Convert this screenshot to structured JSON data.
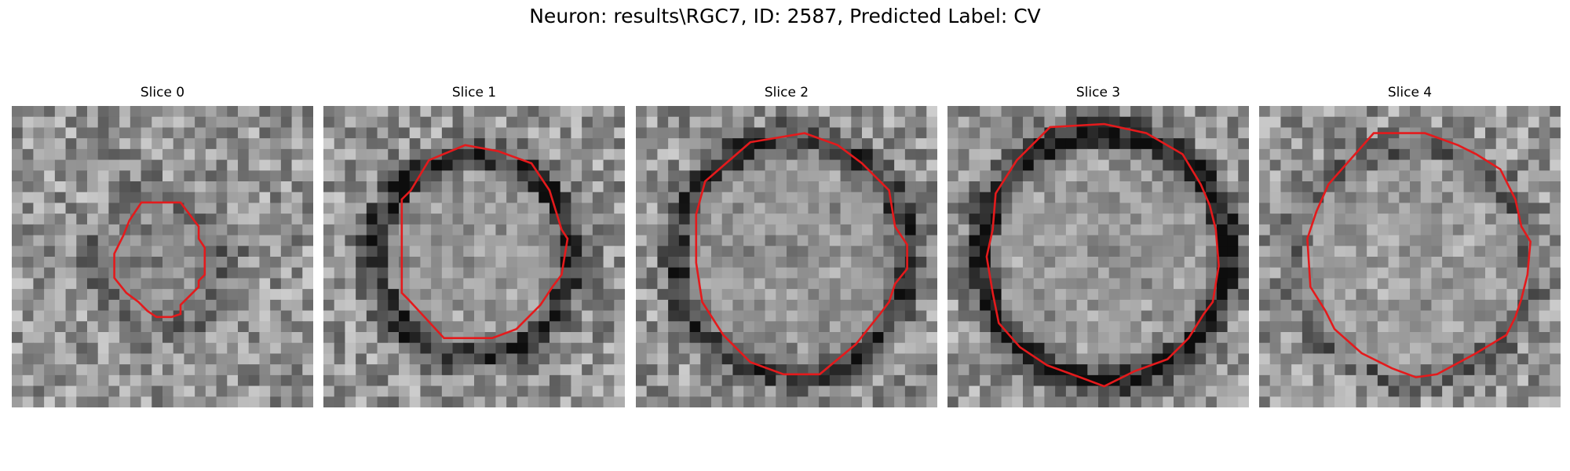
{
  "figure": {
    "title": "Neuron: results\\RGC7, ID: 2587, Predicted Label: CV"
  },
  "contour_color": "#e41a1c",
  "panels": [
    {
      "title": "Slice 0",
      "seed": 11,
      "ring_center": [
        0.5,
        0.52
      ],
      "ring_radius": 0.22,
      "ring_strength": 0.15,
      "interior_level": 0.46,
      "contour": [
        [
          0.43,
          0.32
        ],
        [
          0.56,
          0.32
        ],
        [
          0.62,
          0.4
        ],
        [
          0.62,
          0.44
        ],
        [
          0.64,
          0.47
        ],
        [
          0.64,
          0.56
        ],
        [
          0.62,
          0.58
        ],
        [
          0.62,
          0.6
        ],
        [
          0.56,
          0.66
        ],
        [
          0.56,
          0.69
        ],
        [
          0.53,
          0.7
        ],
        [
          0.48,
          0.7
        ],
        [
          0.45,
          0.68
        ],
        [
          0.42,
          0.65
        ],
        [
          0.38,
          0.62
        ],
        [
          0.34,
          0.57
        ],
        [
          0.34,
          0.49
        ],
        [
          0.37,
          0.43
        ],
        [
          0.39,
          0.38
        ]
      ]
    },
    {
      "title": "Slice 1",
      "seed": 23,
      "ring_center": [
        0.5,
        0.5
      ],
      "ring_radius": 0.33,
      "ring_strength": 0.42,
      "interior_level": 0.62,
      "contour": [
        [
          0.35,
          0.18
        ],
        [
          0.47,
          0.13
        ],
        [
          0.58,
          0.15
        ],
        [
          0.69,
          0.19
        ],
        [
          0.75,
          0.28
        ],
        [
          0.79,
          0.41
        ],
        [
          0.81,
          0.44
        ],
        [
          0.79,
          0.56
        ],
        [
          0.76,
          0.6
        ],
        [
          0.72,
          0.66
        ],
        [
          0.64,
          0.74
        ],
        [
          0.56,
          0.77
        ],
        [
          0.51,
          0.77
        ],
        [
          0.4,
          0.77
        ],
        [
          0.28,
          0.64
        ],
        [
          0.26,
          0.62
        ],
        [
          0.26,
          0.31
        ],
        [
          0.29,
          0.28
        ]
      ]
    },
    {
      "title": "Slice 2",
      "seed": 37,
      "ring_center": [
        0.52,
        0.5
      ],
      "ring_radius": 0.39,
      "ring_strength": 0.4,
      "interior_level": 0.58,
      "contour": [
        [
          0.38,
          0.12
        ],
        [
          0.56,
          0.09
        ],
        [
          0.67,
          0.13
        ],
        [
          0.75,
          0.19
        ],
        [
          0.84,
          0.28
        ],
        [
          0.86,
          0.4
        ],
        [
          0.9,
          0.46
        ],
        [
          0.9,
          0.54
        ],
        [
          0.86,
          0.59
        ],
        [
          0.84,
          0.65
        ],
        [
          0.81,
          0.69
        ],
        [
          0.73,
          0.79
        ],
        [
          0.61,
          0.89
        ],
        [
          0.49,
          0.89
        ],
        [
          0.38,
          0.85
        ],
        [
          0.29,
          0.76
        ],
        [
          0.22,
          0.65
        ],
        [
          0.2,
          0.52
        ],
        [
          0.2,
          0.36
        ],
        [
          0.23,
          0.25
        ]
      ]
    },
    {
      "title": "Slice 3",
      "seed": 53,
      "ring_center": [
        0.52,
        0.5
      ],
      "ring_radius": 0.41,
      "ring_strength": 0.5,
      "interior_level": 0.62,
      "contour": [
        [
          0.34,
          0.07
        ],
        [
          0.52,
          0.06
        ],
        [
          0.66,
          0.09
        ],
        [
          0.78,
          0.16
        ],
        [
          0.84,
          0.26
        ],
        [
          0.87,
          0.33
        ],
        [
          0.89,
          0.41
        ],
        [
          0.9,
          0.53
        ],
        [
          0.88,
          0.65
        ],
        [
          0.85,
          0.69
        ],
        [
          0.8,
          0.77
        ],
        [
          0.73,
          0.84
        ],
        [
          0.62,
          0.88
        ],
        [
          0.52,
          0.93
        ],
        [
          0.44,
          0.9
        ],
        [
          0.33,
          0.86
        ],
        [
          0.24,
          0.8
        ],
        [
          0.17,
          0.72
        ],
        [
          0.15,
          0.62
        ],
        [
          0.13,
          0.5
        ],
        [
          0.15,
          0.41
        ],
        [
          0.16,
          0.29
        ],
        [
          0.23,
          0.18
        ]
      ]
    },
    {
      "title": "Slice 4",
      "seed": 71,
      "ring_center": [
        0.51,
        0.52
      ],
      "ring_radius": 0.39,
      "ring_strength": 0.18,
      "interior_level": 0.65,
      "contour": [
        [
          0.38,
          0.09
        ],
        [
          0.55,
          0.09
        ],
        [
          0.66,
          0.13
        ],
        [
          0.72,
          0.16
        ],
        [
          0.8,
          0.21
        ],
        [
          0.85,
          0.31
        ],
        [
          0.87,
          0.4
        ],
        [
          0.9,
          0.45
        ],
        [
          0.89,
          0.56
        ],
        [
          0.87,
          0.64
        ],
        [
          0.85,
          0.7
        ],
        [
          0.82,
          0.76
        ],
        [
          0.72,
          0.82
        ],
        [
          0.59,
          0.89
        ],
        [
          0.52,
          0.9
        ],
        [
          0.44,
          0.87
        ],
        [
          0.34,
          0.82
        ],
        [
          0.25,
          0.74
        ],
        [
          0.22,
          0.68
        ],
        [
          0.17,
          0.6
        ],
        [
          0.16,
          0.44
        ],
        [
          0.19,
          0.35
        ],
        [
          0.23,
          0.26
        ]
      ]
    }
  ]
}
